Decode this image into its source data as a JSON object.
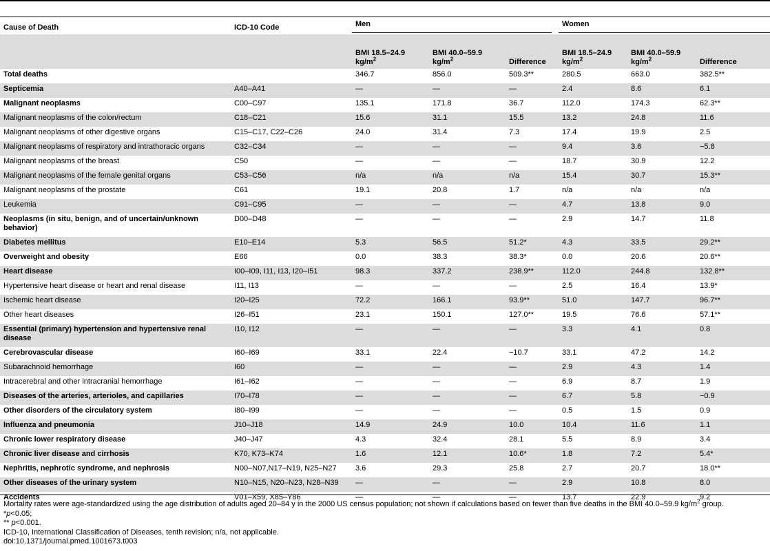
{
  "headers": {
    "cause": "Cause of Death",
    "icd": "ICD-10 Code",
    "men": "Men",
    "women": "Women",
    "bmi_normal": "BMI 18.5–24.9 kg/m",
    "bmi_obese": "BMI 40.0–59.9 kg/m",
    "sup2": "2",
    "difference": "Difference"
  },
  "rows": [
    {
      "cause": "Total deaths",
      "icd": "",
      "men_normal": "346.7",
      "men_obese": "856.0",
      "men_diff": "509.3**",
      "women_normal": "280.5",
      "women_obese": "663.0",
      "women_diff": "382.5**",
      "bold": true,
      "shade": false,
      "double": false
    },
    {
      "cause": "Septicemia",
      "icd": "A40–A41",
      "men_normal": "—",
      "men_obese": "—",
      "men_diff": "—",
      "women_normal": "2.4",
      "women_obese": "8.6",
      "women_diff": "6.1",
      "bold": true,
      "shade": true,
      "double": false
    },
    {
      "cause": "Malignant neoplasms",
      "icd": "C00–C97",
      "men_normal": "135.1",
      "men_obese": "171.8",
      "men_diff": "36.7",
      "women_normal": "112.0",
      "women_obese": "174.3",
      "women_diff": "62.3**",
      "bold": true,
      "shade": false,
      "double": false
    },
    {
      "cause": "Malignant neoplasms of the colon/rectum",
      "icd": "C18–C21",
      "men_normal": "15.6",
      "men_obese": "31.1",
      "men_diff": "15.5",
      "women_normal": "13.2",
      "women_obese": "24.8",
      "women_diff": "11.6",
      "bold": false,
      "shade": true,
      "double": false
    },
    {
      "cause": "Malignant neoplasms of other digestive organs",
      "icd": "C15–C17, C22–C26",
      "men_normal": "24.0",
      "men_obese": "31.4",
      "men_diff": "7.3",
      "women_normal": "17.4",
      "women_obese": "19.9",
      "women_diff": "2.5",
      "bold": false,
      "shade": false,
      "double": false
    },
    {
      "cause": "Malignant neoplasms of respiratory and intrathoracic organs",
      "icd": "C32–C34",
      "men_normal": "—",
      "men_obese": "—",
      "men_diff": "—",
      "women_normal": "9.4",
      "women_obese": "3.6",
      "women_diff": "−5.8",
      "bold": false,
      "shade": true,
      "double": false
    },
    {
      "cause": "Malignant neoplasms of the breast",
      "icd": "C50",
      "men_normal": "—",
      "men_obese": "—",
      "men_diff": "—",
      "women_normal": "18.7",
      "women_obese": "30.9",
      "women_diff": "12.2",
      "bold": false,
      "shade": false,
      "double": false
    },
    {
      "cause": "Malignant neoplasms of the female genital organs",
      "icd": "C53–C56",
      "men_normal": "n/a",
      "men_obese": "n/a",
      "men_diff": "n/a",
      "women_normal": "15.4",
      "women_obese": "30.7",
      "women_diff": "15.3**",
      "bold": false,
      "shade": true,
      "double": false
    },
    {
      "cause": "Malignant neoplasms of the prostate",
      "icd": "C61",
      "men_normal": "19.1",
      "men_obese": "20.8",
      "men_diff": "1.7",
      "women_normal": "n/a",
      "women_obese": "n/a",
      "women_diff": "n/a",
      "bold": false,
      "shade": false,
      "double": false
    },
    {
      "cause": "Leukemia",
      "icd": "C91–C95",
      "men_normal": "—",
      "men_obese": "—",
      "men_diff": "—",
      "women_normal": "4.7",
      "women_obese": "13.8",
      "women_diff": "9.0",
      "bold": false,
      "shade": true,
      "double": false
    },
    {
      "cause": "Neoplasms (in situ, benign, and of uncertain/unknown behavior)",
      "icd": "D00–D48",
      "men_normal": "—",
      "men_obese": "—",
      "men_diff": "—",
      "women_normal": "2.9",
      "women_obese": "14.7",
      "women_diff": "11.8",
      "bold": true,
      "shade": false,
      "double": true
    },
    {
      "cause": "Diabetes mellitus",
      "icd": "E10–E14",
      "men_normal": "5.3",
      "men_obese": "56.5",
      "men_diff": "51.2*",
      "women_normal": "4.3",
      "women_obese": "33.5",
      "women_diff": "29.2**",
      "bold": true,
      "shade": true,
      "double": false
    },
    {
      "cause": "Overweight and obesity",
      "icd": "E66",
      "men_normal": "0.0",
      "men_obese": "38.3",
      "men_diff": "38.3*",
      "women_normal": "0.0",
      "women_obese": "20.6",
      "women_diff": "20.6**",
      "bold": true,
      "shade": false,
      "double": false
    },
    {
      "cause": "Heart disease",
      "icd": "I00–I09, I11, I13, I20–I51",
      "men_normal": "98.3",
      "men_obese": "337.2",
      "men_diff": "238.9**",
      "women_normal": "112.0",
      "women_obese": "244.8",
      "women_diff": "132.8**",
      "bold": true,
      "shade": true,
      "double": false
    },
    {
      "cause": "Hypertensive heart disease or heart and renal disease",
      "icd": "I11, I13",
      "men_normal": "—",
      "men_obese": "—",
      "men_diff": "—",
      "women_normal": "2.5",
      "women_obese": "16.4",
      "women_diff": "13.9*",
      "bold": false,
      "shade": false,
      "double": false
    },
    {
      "cause": "Ischemic heart disease",
      "icd": "I20–I25",
      "men_normal": "72.2",
      "men_obese": "166.1",
      "men_diff": "93.9**",
      "women_normal": "51.0",
      "women_obese": "147.7",
      "women_diff": "96.7**",
      "bold": false,
      "shade": true,
      "double": false
    },
    {
      "cause": "Other heart diseases",
      "icd": "I26–I51",
      "men_normal": "23.1",
      "men_obese": "150.1",
      "men_diff": "127.0**",
      "women_normal": "19.5",
      "women_obese": "76.6",
      "women_diff": "57.1**",
      "bold": false,
      "shade": false,
      "double": false
    },
    {
      "cause": "Essential (primary) hypertension and hypertensive renal disease",
      "icd": "I10, I12",
      "men_normal": "—",
      "men_obese": "—",
      "men_diff": "—",
      "women_normal": "3.3",
      "women_obese": "4.1",
      "women_diff": "0.8",
      "bold": true,
      "shade": true,
      "double": true
    },
    {
      "cause": "Cerebrovascular disease",
      "icd": "I60–I69",
      "men_normal": "33.1",
      "men_obese": "22.4",
      "men_diff": "−10.7",
      "women_normal": "33.1",
      "women_obese": "47.2",
      "women_diff": "14.2",
      "bold": true,
      "shade": false,
      "double": false
    },
    {
      "cause": "Subarachnoid hemorrhage",
      "icd": "I60",
      "men_normal": "—",
      "men_obese": "—",
      "men_diff": "—",
      "women_normal": "2.9",
      "women_obese": "4.3",
      "women_diff": "1.4",
      "bold": false,
      "shade": true,
      "double": false
    },
    {
      "cause": "Intracerebral and other intracranial hemorrhage",
      "icd": "I61–I62",
      "men_normal": "—",
      "men_obese": "—",
      "men_diff": "—",
      "women_normal": "6.9",
      "women_obese": "8.7",
      "women_diff": "1.9",
      "bold": false,
      "shade": false,
      "double": false
    },
    {
      "cause": "Diseases of the arteries, arterioles, and capillaries",
      "icd": "I70–I78",
      "men_normal": "—",
      "men_obese": "—",
      "men_diff": "—",
      "women_normal": "6.7",
      "women_obese": "5.8",
      "women_diff": "−0.9",
      "bold": true,
      "shade": true,
      "double": false
    },
    {
      "cause": "Other disorders of the circulatory system",
      "icd": "I80–I99",
      "men_normal": "—",
      "men_obese": "—",
      "men_diff": "—",
      "women_normal": "0.5",
      "women_obese": "1.5",
      "women_diff": "0.9",
      "bold": true,
      "shade": false,
      "double": false
    },
    {
      "cause": "Influenza and pneumonia",
      "icd": "J10–J18",
      "men_normal": "14.9",
      "men_obese": "24.9",
      "men_diff": "10.0",
      "women_normal": "10.4",
      "women_obese": "11.6",
      "women_diff": "1.1",
      "bold": true,
      "shade": true,
      "double": false
    },
    {
      "cause": "Chronic lower respiratory disease",
      "icd": "J40–J47",
      "men_normal": "4.3",
      "men_obese": "32.4",
      "men_diff": "28.1",
      "women_normal": "5.5",
      "women_obese": "8.9",
      "women_diff": "3.4",
      "bold": true,
      "shade": false,
      "double": false
    },
    {
      "cause": "Chronic liver disease and cirrhosis",
      "icd": "K70, K73–K74",
      "men_normal": "1.6",
      "men_obese": "12.1",
      "men_diff": "10.6*",
      "women_normal": "1.8",
      "women_obese": "7.2",
      "women_diff": "5.4*",
      "bold": true,
      "shade": true,
      "double": false
    },
    {
      "cause": "Nephritis, nephrotic syndrome, and nephrosis",
      "icd": "N00–N07,N17–N19, N25–N27",
      "men_normal": "3.6",
      "men_obese": "29.3",
      "men_diff": "25.8",
      "women_normal": "2.7",
      "women_obese": "20.7",
      "women_diff": "18.0**",
      "bold": true,
      "shade": false,
      "double": false
    },
    {
      "cause": "Other diseases of the urinary system",
      "icd": "N10–N15, N20–N23, N28–N39",
      "men_normal": "—",
      "men_obese": "—",
      "men_diff": "—",
      "women_normal": "2.9",
      "women_obese": "10.8",
      "women_diff": "8.0",
      "bold": true,
      "shade": true,
      "double": false
    },
    {
      "cause": "Accidents",
      "icd": "V01–X59, X85–Y86",
      "men_normal": "—",
      "men_obese": "—",
      "men_diff": "—",
      "women_normal": "13.7",
      "women_obese": "22.9",
      "women_diff": "9.2",
      "bold": true,
      "shade": false,
      "double": false
    }
  ],
  "footnotes": {
    "standardization_a": "Mortality rates were age-standardized using the age distribution of adults aged 20–84 y in the 2000 US census population; not shown if calculations based on fewer than five deaths in the BMI 40.0–59.9 kg/m",
    "standardization_sup": "2",
    "standardization_b": " group.",
    "sig1_star": "*",
    "sig1_p": "p",
    "sig1_rest": "<0.05;",
    "sig2_star": "** ",
    "sig2_p": "p",
    "sig2_rest": "<0.001.",
    "abbrev": "ICD-10, International Classification of Diseases, tenth revision; n/a, not applicable.",
    "doi": "doi:10.1371/journal.pmed.1001673.t003"
  }
}
